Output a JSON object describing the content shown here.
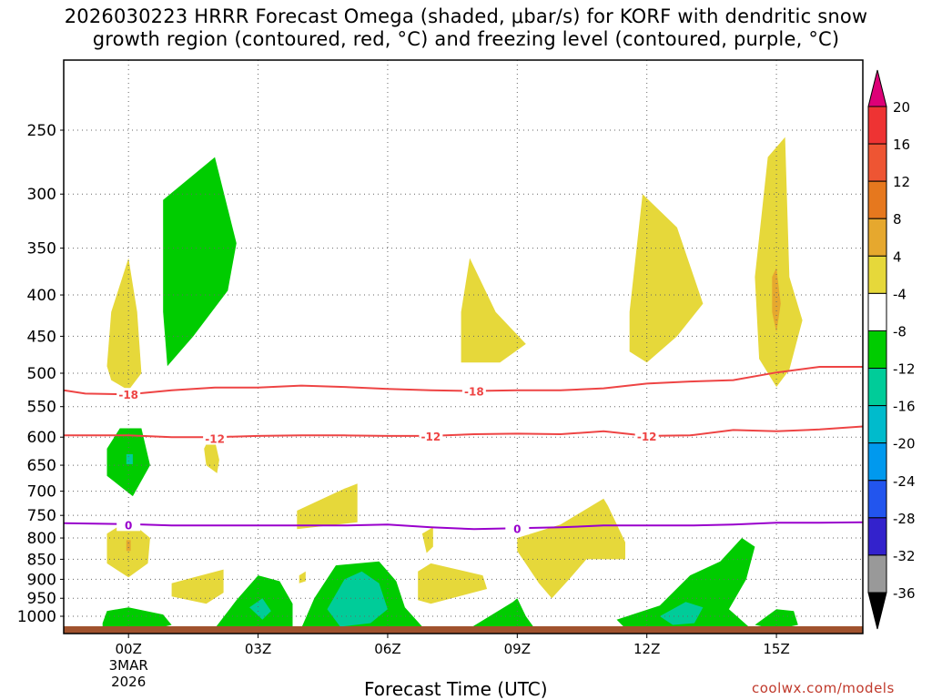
{
  "title": {
    "line1": "2026030223 HRRR Forecast Omega (shaded, μbar/s) for KORF with dendritic snow",
    "line2": "growth region (contoured, red, °C) and freezing level (contoured, purple, °C)"
  },
  "xlabel": "Forecast Time (UTC)",
  "credit": "coolwx.com/models",
  "colors": {
    "up_1": "#00cc00",
    "up_2": "#00cc99",
    "up_3": "#00bbcc",
    "up_4": "#0099ee",
    "down_1": "#e6d83a",
    "down_2": "#e6a82e",
    "down_3": "#e6781e",
    "red_contour": "#ee4444",
    "purple_contour": "#9900cc",
    "ground": "#a0522d"
  },
  "chart_data": {
    "type": "heatmap",
    "x_unit": "forecast hour",
    "y_unit": "hPa",
    "xlim": [
      -1.5,
      17
    ],
    "x_ticks": [
      {
        "hour": 0,
        "label": "00Z",
        "sub1": "3MAR",
        "sub2": "2026"
      },
      {
        "hour": 3,
        "label": "03Z"
      },
      {
        "hour": 6,
        "label": "06Z"
      },
      {
        "hour": 9,
        "label": "09Z"
      },
      {
        "hour": 12,
        "label": "12Z"
      },
      {
        "hour": 15,
        "label": "15Z"
      }
    ],
    "y_ticks": [
      250,
      300,
      350,
      400,
      450,
      500,
      550,
      600,
      650,
      700,
      750,
      800,
      850,
      900,
      950,
      1000
    ],
    "colorbar": {
      "labels": [
        "20",
        "16",
        "12",
        "8",
        "4",
        "-4",
        "-8",
        "-12",
        "-16",
        "-20",
        "-24",
        "-28",
        "-32",
        "-36"
      ],
      "colors": [
        "#ee3333",
        "#ee5533",
        "#e6781e",
        "#e6a82e",
        "#e6d83a",
        "#ffffff",
        "#00cc00",
        "#00cc99",
        "#00bbcc",
        "#0099ee",
        "#2255ee",
        "#3322cc",
        "#9900cc",
        "#999999"
      ],
      "top_color": "#dd0077",
      "bottom_color": "#000000"
    },
    "contours": [
      {
        "name": "-18",
        "color": "#ee4444",
        "points": [
          [
            -1.5,
            525
          ],
          [
            -1,
            530
          ],
          [
            0,
            531
          ],
          [
            1,
            525
          ],
          [
            2,
            521
          ],
          [
            3,
            521
          ],
          [
            4,
            518
          ],
          [
            5,
            520
          ],
          [
            6,
            523
          ],
          [
            7,
            525
          ],
          [
            8,
            526
          ],
          [
            9,
            525
          ],
          [
            10,
            525
          ],
          [
            11,
            522
          ],
          [
            12,
            515
          ],
          [
            13,
            512
          ],
          [
            14,
            510
          ],
          [
            15,
            499
          ],
          [
            16,
            491
          ],
          [
            17,
            491
          ]
        ],
        "labels": [
          {
            "hour": 0,
            "p": 531,
            "text": "-18"
          },
          {
            "hour": 8,
            "p": 526,
            "text": "-18"
          }
        ]
      },
      {
        "name": "-12",
        "color": "#ee4444",
        "points": [
          [
            -1.5,
            597
          ],
          [
            0,
            597
          ],
          [
            1,
            600
          ],
          [
            2,
            600
          ],
          [
            3,
            598
          ],
          [
            4,
            597
          ],
          [
            5,
            597
          ],
          [
            6,
            598
          ],
          [
            7,
            598
          ],
          [
            8,
            595
          ],
          [
            9,
            594
          ],
          [
            10,
            595
          ],
          [
            11,
            590
          ],
          [
            12,
            598
          ],
          [
            13,
            597
          ],
          [
            14,
            588
          ],
          [
            15,
            590
          ],
          [
            16,
            587
          ],
          [
            17,
            582
          ]
        ],
        "labels": [
          {
            "hour": 2,
            "p": 602,
            "text": "-12"
          },
          {
            "hour": 7,
            "p": 598,
            "text": "-12"
          },
          {
            "hour": 12,
            "p": 598,
            "text": "-12"
          }
        ]
      },
      {
        "name": "0",
        "color": "#9900cc",
        "points": [
          [
            -1.5,
            767
          ],
          [
            0,
            769
          ],
          [
            1,
            772
          ],
          [
            2,
            772
          ],
          [
            3,
            772
          ],
          [
            4,
            772
          ],
          [
            5,
            772
          ],
          [
            6,
            770
          ],
          [
            7,
            776
          ],
          [
            8,
            780
          ],
          [
            9,
            778
          ],
          [
            10,
            776
          ],
          [
            11,
            772
          ],
          [
            12,
            772
          ],
          [
            13,
            772
          ],
          [
            14,
            770
          ],
          [
            15,
            766
          ],
          [
            16,
            766
          ],
          [
            17,
            765
          ]
        ],
        "labels": [
          {
            "hour": 0,
            "p": 770,
            "text": "0"
          },
          {
            "hour": 9,
            "p": 778,
            "text": "0"
          }
        ]
      }
    ],
    "regions": [
      {
        "cat": "up_1",
        "points": [
          [
            0.8,
            305
          ],
          [
            2.0,
            270
          ],
          [
            2.5,
            345
          ],
          [
            2.3,
            395
          ],
          [
            1.5,
            450
          ],
          [
            0.9,
            490
          ],
          [
            0.8,
            420
          ]
        ]
      },
      {
        "cat": "up_1",
        "points": [
          [
            -0.5,
            620
          ],
          [
            -0.2,
            585
          ],
          [
            0.3,
            585
          ],
          [
            0.5,
            650
          ],
          [
            0.1,
            710
          ],
          [
            -0.5,
            670
          ]
        ]
      },
      {
        "cat": "up_2",
        "points": [
          [
            -0.05,
            630
          ],
          [
            0.1,
            630
          ],
          [
            0.1,
            648
          ],
          [
            -0.05,
            648
          ]
        ]
      },
      {
        "cat": "down_1",
        "points": [
          [
            -0.5,
            490
          ],
          [
            -0.4,
            420
          ],
          [
            0,
            360
          ],
          [
            0.2,
            420
          ],
          [
            0.3,
            500
          ],
          [
            0,
            525
          ],
          [
            -0.4,
            510
          ]
        ]
      },
      {
        "cat": "down_1",
        "points": [
          [
            1.75,
            620
          ],
          [
            1.95,
            590
          ],
          [
            2.1,
            640
          ],
          [
            2.05,
            665
          ],
          [
            1.8,
            650
          ]
        ]
      },
      {
        "cat": "down_1",
        "points": [
          [
            -0.5,
            790
          ],
          [
            0,
            760
          ],
          [
            0.5,
            800
          ],
          [
            0.45,
            860
          ],
          [
            0,
            895
          ],
          [
            -0.5,
            860
          ]
        ]
      },
      {
        "cat": "down_2",
        "points": [
          [
            -0.05,
            805
          ],
          [
            0.05,
            805
          ],
          [
            0.05,
            830
          ],
          [
            -0.05,
            830
          ]
        ]
      },
      {
        "cat": "down_1",
        "points": [
          [
            1.0,
            910
          ],
          [
            2.2,
            875
          ],
          [
            2.2,
            935
          ],
          [
            1.8,
            965
          ],
          [
            1.0,
            945
          ]
        ]
      },
      {
        "cat": "down_1",
        "points": [
          [
            3.9,
            740
          ],
          [
            5.0,
            695
          ],
          [
            5.3,
            685
          ],
          [
            5.3,
            765
          ],
          [
            3.9,
            780
          ]
        ]
      },
      {
        "cat": "down_1",
        "points": [
          [
            3.95,
            890
          ],
          [
            4.1,
            880
          ],
          [
            4.1,
            905
          ],
          [
            3.95,
            910
          ]
        ]
      },
      {
        "cat": "down_1",
        "points": [
          [
            6.8,
            790
          ],
          [
            7.05,
            776
          ],
          [
            7.05,
            820
          ],
          [
            6.9,
            835
          ]
        ]
      },
      {
        "cat": "down_1",
        "points": [
          [
            6.7,
            880
          ],
          [
            7.0,
            860
          ],
          [
            8.2,
            890
          ],
          [
            8.3,
            925
          ],
          [
            7.0,
            965
          ],
          [
            6.7,
            955
          ]
        ]
      },
      {
        "cat": "down_1",
        "points": [
          [
            7.7,
            420
          ],
          [
            7.9,
            360
          ],
          [
            8.5,
            420
          ],
          [
            9.2,
            460
          ],
          [
            8.6,
            485
          ],
          [
            7.7,
            485
          ]
        ]
      },
      {
        "cat": "down_1",
        "points": [
          [
            9.0,
            800
          ],
          [
            10.0,
            770
          ],
          [
            11.0,
            715
          ],
          [
            11.1,
            730
          ],
          [
            11.5,
            810
          ],
          [
            11.5,
            850
          ],
          [
            10.6,
            850
          ],
          [
            10.2,
            900
          ],
          [
            9.8,
            950
          ],
          [
            9.5,
            910
          ],
          [
            9.0,
            830
          ]
        ]
      },
      {
        "cat": "down_1",
        "points": [
          [
            11.6,
            420
          ],
          [
            11.9,
            300
          ],
          [
            12.7,
            330
          ],
          [
            13.3,
            410
          ],
          [
            12.7,
            450
          ],
          [
            12.0,
            485
          ],
          [
            11.6,
            470
          ]
        ]
      },
      {
        "cat": "down_1",
        "points": [
          [
            14.5,
            380
          ],
          [
            14.8,
            270
          ],
          [
            15.2,
            255
          ],
          [
            15.3,
            380
          ],
          [
            15.6,
            430
          ],
          [
            15.3,
            495
          ],
          [
            15.0,
            520
          ],
          [
            14.6,
            480
          ]
        ]
      },
      {
        "cat": "down_2",
        "points": [
          [
            14.9,
            380
          ],
          [
            15.0,
            370
          ],
          [
            15.1,
            410
          ],
          [
            15.0,
            445
          ],
          [
            14.9,
            420
          ]
        ]
      },
      {
        "cat": "up_1",
        "points": [
          [
            -0.6,
            1020
          ],
          [
            -0.5,
            985
          ],
          [
            0,
            975
          ],
          [
            0.8,
            995
          ],
          [
            1.0,
            1025
          ],
          [
            0.5,
            1040
          ],
          [
            -0.6,
            1040
          ]
        ]
      },
      {
        "cat": "up_1",
        "points": [
          [
            2.0,
            1035
          ],
          [
            2.5,
            955
          ],
          [
            3.0,
            890
          ],
          [
            3.5,
            905
          ],
          [
            3.8,
            965
          ],
          [
            3.8,
            1030
          ],
          [
            3.0,
            1040
          ]
        ]
      },
      {
        "cat": "up_2",
        "points": [
          [
            2.8,
            975
          ],
          [
            3.1,
            950
          ],
          [
            3.3,
            985
          ],
          [
            3.1,
            1010
          ]
        ]
      },
      {
        "cat": "up_1",
        "points": [
          [
            4.0,
            1035
          ],
          [
            4.3,
            950
          ],
          [
            4.8,
            865
          ],
          [
            5.8,
            855
          ],
          [
            6.2,
            905
          ],
          [
            6.4,
            975
          ],
          [
            6.8,
            1030
          ],
          [
            6.0,
            1040
          ],
          [
            4.2,
            1040
          ]
        ]
      },
      {
        "cat": "up_2",
        "points": [
          [
            4.6,
            980
          ],
          [
            5.0,
            900
          ],
          [
            5.4,
            880
          ],
          [
            5.8,
            910
          ],
          [
            6.0,
            980
          ],
          [
            5.6,
            1020
          ],
          [
            4.9,
            1030
          ]
        ]
      },
      {
        "cat": "up_1",
        "points": [
          [
            7.9,
            1035
          ],
          [
            8.9,
            960
          ],
          [
            9.0,
            950
          ],
          [
            9.2,
            1000
          ],
          [
            9.4,
            1035
          ]
        ]
      },
      {
        "cat": "up_1",
        "points": [
          [
            11.3,
            1010
          ],
          [
            12.3,
            970
          ],
          [
            13.0,
            890
          ],
          [
            13.7,
            855
          ],
          [
            14.2,
            800
          ],
          [
            14.5,
            820
          ],
          [
            14.3,
            900
          ],
          [
            13.9,
            980
          ],
          [
            14.4,
            1035
          ],
          [
            11.5,
            1035
          ]
        ]
      },
      {
        "cat": "up_2",
        "points": [
          [
            12.3,
            1000
          ],
          [
            12.9,
            960
          ],
          [
            13.3,
            975
          ],
          [
            13.1,
            1020
          ],
          [
            12.6,
            1025
          ]
        ]
      },
      {
        "cat": "up_1",
        "points": [
          [
            14.5,
            1025
          ],
          [
            15.0,
            980
          ],
          [
            15.4,
            985
          ],
          [
            15.5,
            1025
          ],
          [
            15.0,
            1038
          ]
        ]
      }
    ]
  }
}
